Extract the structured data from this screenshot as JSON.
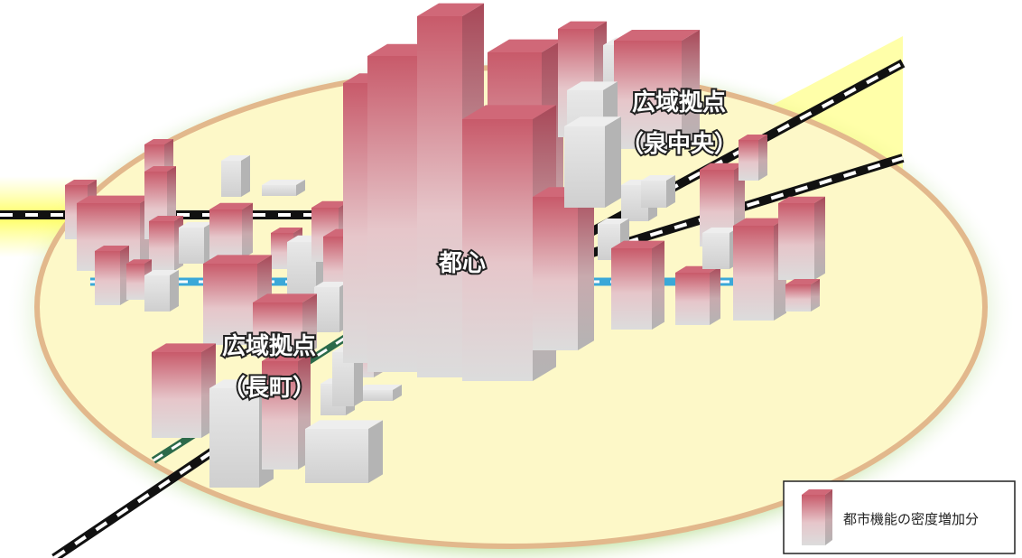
{
  "labels": {
    "hub_north": {
      "title": "広域拠点",
      "place": "（泉中央）"
    },
    "center": "都心",
    "hub_south": {
      "title": "広域拠点",
      "place": "（長町）"
    }
  },
  "legend": {
    "text": "都市機能の密度増加分"
  }
}
